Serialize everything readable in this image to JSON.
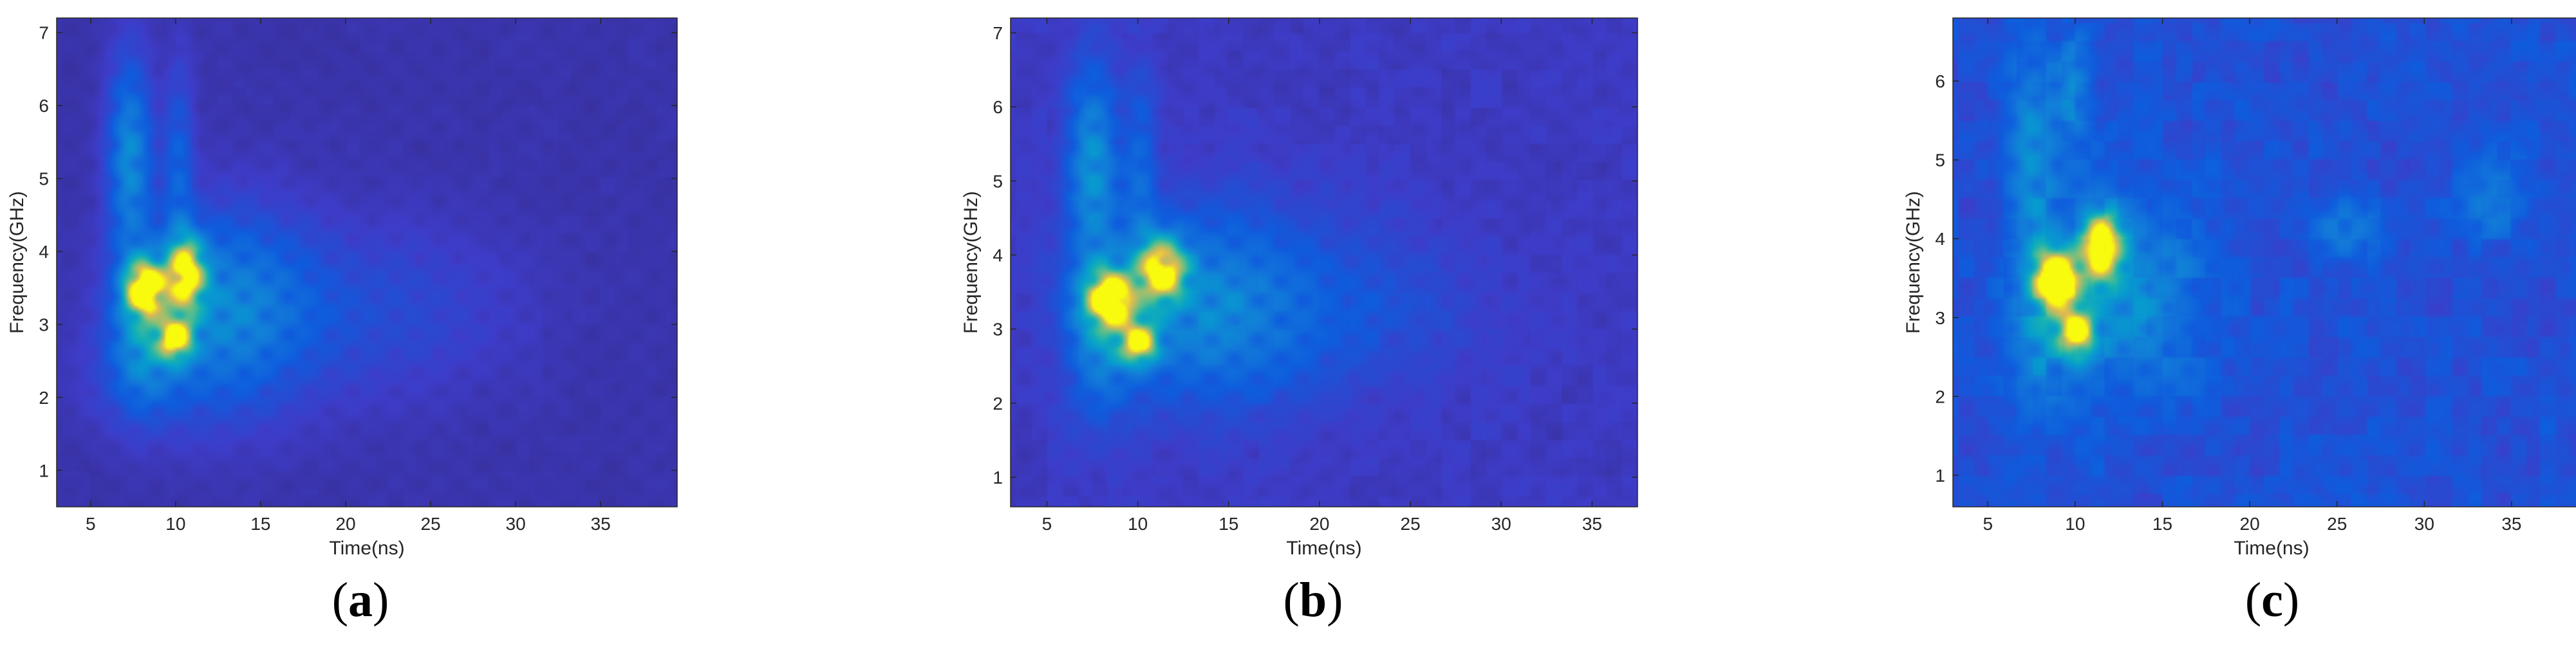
{
  "chart_data": [
    {
      "type": "heatmap",
      "panel_label": "a",
      "xlabel": "Time(ns)",
      "ylabel": "Frequency(GHz)",
      "xlim": [
        3,
        39.5
      ],
      "ylim": [
        0.5,
        7.2
      ],
      "xticks": [
        5,
        10,
        15,
        20,
        25,
        30,
        35
      ],
      "yticks": [
        1,
        2,
        3,
        4,
        5,
        6,
        7
      ],
      "colormap": "parula",
      "background_level": 0.05,
      "noise_level": 0.02,
      "blobs": [
        {
          "t": 7.3,
          "f": 5.3,
          "st": 0.9,
          "sf": 0.9,
          "a": 0.42
        },
        {
          "t": 10.2,
          "f": 5.2,
          "st": 0.6,
          "sf": 0.9,
          "a": 0.22
        },
        {
          "t": 8.2,
          "f": 3.5,
          "st": 0.8,
          "sf": 0.25,
          "a": 0.98
        },
        {
          "t": 10.6,
          "f": 3.7,
          "st": 0.8,
          "sf": 0.35,
          "a": 0.88
        },
        {
          "t": 10.0,
          "f": 2.8,
          "st": 0.7,
          "sf": 0.2,
          "a": 0.82
        },
        {
          "t": 13.0,
          "f": 3.2,
          "st": 3.5,
          "sf": 0.9,
          "a": 0.38
        },
        {
          "t": 22.0,
          "f": 3.2,
          "st": 5.5,
          "sf": 0.8,
          "a": 0.12
        },
        {
          "t": 8.0,
          "f": 3.0,
          "st": 1.2,
          "sf": 0.7,
          "a": 0.35
        },
        {
          "t": 8.5,
          "f": 2.3,
          "st": 2.5,
          "sf": 0.5,
          "a": 0.12
        }
      ]
    },
    {
      "type": "heatmap",
      "panel_label": "b",
      "xlabel": "Time(ns)",
      "ylabel": "Frequency(GHz)",
      "xlim": [
        3,
        37.5
      ],
      "ylim": [
        0.6,
        7.2
      ],
      "xticks": [
        5,
        10,
        15,
        20,
        25,
        30,
        35
      ],
      "yticks": [
        1,
        2,
        3,
        4,
        5,
        6,
        7
      ],
      "colormap": "parula",
      "background_level": 0.07,
      "noise_level": 0.05,
      "blobs": [
        {
          "t": 7.5,
          "f": 5.3,
          "st": 1.0,
          "sf": 0.9,
          "a": 0.4
        },
        {
          "t": 10.2,
          "f": 5.2,
          "st": 0.6,
          "sf": 0.9,
          "a": 0.2
        },
        {
          "t": 8.5,
          "f": 3.4,
          "st": 0.9,
          "sf": 0.25,
          "a": 0.96
        },
        {
          "t": 11.3,
          "f": 3.8,
          "st": 0.9,
          "sf": 0.3,
          "a": 0.88
        },
        {
          "t": 10.1,
          "f": 2.8,
          "st": 0.7,
          "sf": 0.2,
          "a": 0.8
        },
        {
          "t": 13.5,
          "f": 3.3,
          "st": 4.0,
          "sf": 0.9,
          "a": 0.36
        },
        {
          "t": 22.0,
          "f": 3.3,
          "st": 5.0,
          "sf": 0.8,
          "a": 0.12
        },
        {
          "t": 8.0,
          "f": 3.0,
          "st": 1.3,
          "sf": 0.8,
          "a": 0.32
        }
      ]
    },
    {
      "type": "heatmap",
      "panel_label": "c",
      "xlabel": "Time(ns)",
      "ylabel": "Frequency(GHz)",
      "xlim": [
        3,
        39.5
      ],
      "ylim": [
        0.6,
        6.8
      ],
      "xticks": [
        5,
        10,
        15,
        20,
        25,
        30,
        35
      ],
      "yticks": [
        1,
        2,
        3,
        4,
        5,
        6
      ],
      "colormap": "parula",
      "background_level": 0.14,
      "noise_level": 0.13,
      "blobs": [
        {
          "t": 7.5,
          "f": 5.2,
          "st": 1.0,
          "sf": 0.9,
          "a": 0.3
        },
        {
          "t": 10.0,
          "f": 5.9,
          "st": 0.7,
          "sf": 0.5,
          "a": 0.25
        },
        {
          "t": 9.0,
          "f": 3.5,
          "st": 0.9,
          "sf": 0.25,
          "a": 0.96
        },
        {
          "t": 11.5,
          "f": 3.9,
          "st": 0.8,
          "sf": 0.3,
          "a": 0.88
        },
        {
          "t": 10.1,
          "f": 2.8,
          "st": 0.7,
          "sf": 0.22,
          "a": 0.82
        },
        {
          "t": 13.0,
          "f": 3.3,
          "st": 3.0,
          "sf": 0.9,
          "a": 0.3
        },
        {
          "t": 25.5,
          "f": 4.1,
          "st": 1.5,
          "sf": 0.3,
          "a": 0.2
        },
        {
          "t": 34.0,
          "f": 4.5,
          "st": 1.5,
          "sf": 0.4,
          "a": 0.18
        },
        {
          "t": 8.0,
          "f": 3.0,
          "st": 1.2,
          "sf": 0.8,
          "a": 0.28
        }
      ]
    }
  ]
}
